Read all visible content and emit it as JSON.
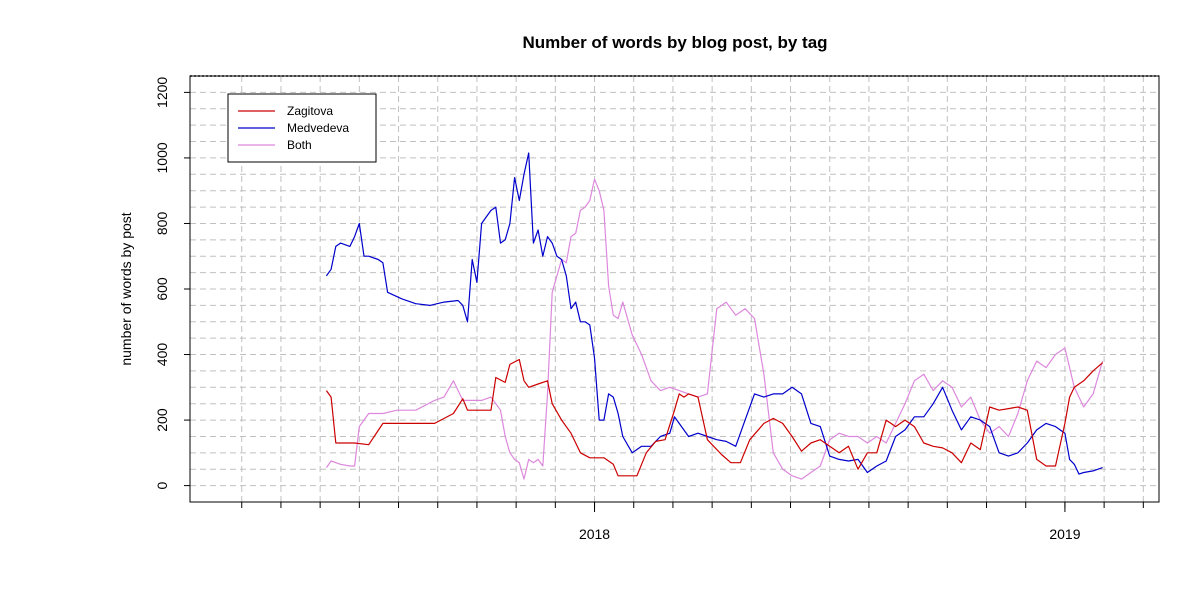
{
  "chart_data": {
    "type": "line",
    "title": "Number of words by blog post, by tag",
    "xlabel": "",
    "ylabel": "number of words by post",
    "xlim": [
      2017.14,
      2019.2
    ],
    "ylim": [
      -50,
      1250
    ],
    "x_ticks": [
      {
        "value": 2018,
        "label": "2018"
      },
      {
        "value": 2019,
        "label": "2019"
      }
    ],
    "y_ticks": [
      {
        "value": 0,
        "label": "0"
      },
      {
        "value": 200,
        "label": "200"
      },
      {
        "value": 400,
        "label": "400"
      },
      {
        "value": 600,
        "label": "600"
      },
      {
        "value": 800,
        "label": "800"
      },
      {
        "value": 1000,
        "label": "1000"
      },
      {
        "value": 1200,
        "label": "1200"
      }
    ],
    "grid": true,
    "legend": "top-left",
    "series": [
      {
        "name": "Zagitova",
        "color": "#cc0000",
        "x": [
          2017.43,
          2017.44,
          2017.45,
          2017.46,
          2017.49,
          2017.52,
          2017.55,
          2017.58,
          2017.62,
          2017.66,
          2017.7,
          2017.72,
          2017.73,
          2017.74,
          2017.76,
          2017.78,
          2017.79,
          2017.81,
          2017.82,
          2017.84,
          2017.85,
          2017.86,
          2017.88,
          2017.9,
          2017.91,
          2017.93,
          2017.95,
          2017.97,
          2017.99,
          2018.0,
          2018.02,
          2018.04,
          2018.05,
          2018.07,
          2018.09,
          2018.11,
          2018.13,
          2018.15,
          2018.17,
          2018.18,
          2018.19,
          2018.2,
          2018.22,
          2018.24,
          2018.27,
          2018.29,
          2018.31,
          2018.33,
          2018.36,
          2018.38,
          2018.4,
          2018.42,
          2018.44,
          2018.46,
          2018.48,
          2018.5,
          2018.52,
          2018.54,
          2018.56,
          2018.58,
          2018.6,
          2018.62,
          2018.64,
          2018.66,
          2018.68,
          2018.7,
          2018.72,
          2018.74,
          2018.76,
          2018.78,
          2018.8,
          2018.82,
          2018.84,
          2018.86,
          2018.88,
          2018.9,
          2018.92,
          2018.94,
          2018.96,
          2018.98,
          2019.0,
          2019.01,
          2019.02,
          2019.04,
          2019.06,
          2019.08
        ],
        "y": [
          290,
          270,
          130,
          130,
          130,
          125,
          190,
          190,
          190,
          190,
          220,
          265,
          230,
          230,
          230,
          230,
          330,
          315,
          370,
          385,
          320,
          300,
          310,
          320,
          250,
          200,
          160,
          100,
          85,
          85,
          85,
          65,
          30,
          30,
          30,
          100,
          135,
          140,
          230,
          280,
          270,
          280,
          270,
          140,
          95,
          70,
          70,
          140,
          190,
          205,
          190,
          150,
          105,
          130,
          140,
          120,
          100,
          120,
          50,
          100,
          100,
          200,
          180,
          200,
          180,
          130,
          120,
          115,
          100,
          70,
          130,
          110,
          240,
          230,
          235,
          240,
          230,
          80,
          60,
          60,
          190,
          270,
          300,
          320,
          350,
          375
        ]
      },
      {
        "name": "Medvedeva",
        "color": "#0000cc",
        "x": [
          2017.43,
          2017.44,
          2017.45,
          2017.46,
          2017.48,
          2017.49,
          2017.5,
          2017.51,
          2017.52,
          2017.54,
          2017.55,
          2017.56,
          2017.59,
          2017.62,
          2017.65,
          2017.68,
          2017.71,
          2017.72,
          2017.73,
          2017.74,
          2017.75,
          2017.76,
          2017.77,
          2017.78,
          2017.79,
          2017.8,
          2017.81,
          2017.82,
          2017.83,
          2017.84,
          2017.85,
          2017.86,
          2017.87,
          2017.88,
          2017.89,
          2017.9,
          2017.91,
          2017.92,
          2017.93,
          2017.94,
          2017.95,
          2017.96,
          2017.97,
          2017.98,
          2017.99,
          2018.0,
          2018.01,
          2018.02,
          2018.03,
          2018.04,
          2018.05,
          2018.06,
          2018.08,
          2018.1,
          2018.12,
          2018.14,
          2018.16,
          2018.17,
          2018.18,
          2018.2,
          2018.22,
          2018.24,
          2018.26,
          2018.28,
          2018.3,
          2018.32,
          2018.34,
          2018.36,
          2018.38,
          2018.4,
          2018.42,
          2018.44,
          2018.46,
          2018.48,
          2018.5,
          2018.52,
          2018.54,
          2018.56,
          2018.58,
          2018.6,
          2018.62,
          2018.64,
          2018.66,
          2018.68,
          2018.7,
          2018.72,
          2018.74,
          2018.76,
          2018.78,
          2018.8,
          2018.82,
          2018.84,
          2018.86,
          2018.88,
          2018.9,
          2018.92,
          2018.94,
          2018.96,
          2018.98,
          2019.0,
          2019.01,
          2019.02,
          2019.03,
          2019.04,
          2019.06,
          2019.08
        ],
        "y": [
          640,
          660,
          730,
          740,
          730,
          760,
          800,
          700,
          700,
          690,
          680,
          590,
          570,
          555,
          550,
          560,
          565,
          550,
          500,
          690,
          620,
          800,
          820,
          840,
          850,
          740,
          750,
          800,
          940,
          870,
          950,
          1015,
          740,
          780,
          700,
          760,
          740,
          700,
          690,
          640,
          540,
          560,
          500,
          500,
          490,
          390,
          200,
          200,
          280,
          270,
          220,
          150,
          100,
          120,
          120,
          150,
          160,
          210,
          190,
          150,
          160,
          150,
          140,
          135,
          120,
          200,
          280,
          270,
          280,
          280,
          300,
          280,
          190,
          180,
          90,
          80,
          75,
          80,
          40,
          60,
          75,
          150,
          170,
          210,
          210,
          250,
          300,
          230,
          170,
          210,
          200,
          180,
          100,
          90,
          100,
          130,
          170,
          190,
          180,
          160,
          80,
          65,
          35,
          40,
          45,
          55
        ]
      },
      {
        "name": "Both",
        "color": "#dd88dd",
        "x": [
          2017.43,
          2017.44,
          2017.46,
          2017.48,
          2017.49,
          2017.5,
          2017.52,
          2017.55,
          2017.58,
          2017.62,
          2017.66,
          2017.68,
          2017.7,
          2017.72,
          2017.73,
          2017.74,
          2017.76,
          2017.78,
          2017.79,
          2017.8,
          2017.81,
          2017.82,
          2017.83,
          2017.84,
          2017.85,
          2017.86,
          2017.87,
          2017.88,
          2017.89,
          2017.9,
          2017.91,
          2017.92,
          2017.93,
          2017.94,
          2017.95,
          2017.96,
          2017.97,
          2017.98,
          2017.99,
          2018.0,
          2018.01,
          2018.02,
          2018.03,
          2018.04,
          2018.05,
          2018.06,
          2018.08,
          2018.1,
          2018.12,
          2018.14,
          2018.16,
          2018.18,
          2018.2,
          2018.22,
          2018.24,
          2018.26,
          2018.28,
          2018.3,
          2018.32,
          2018.34,
          2018.36,
          2018.38,
          2018.4,
          2018.42,
          2018.44,
          2018.46,
          2018.48,
          2018.5,
          2018.52,
          2018.54,
          2018.56,
          2018.58,
          2018.6,
          2018.62,
          2018.64,
          2018.66,
          2018.68,
          2018.7,
          2018.72,
          2018.74,
          2018.76,
          2018.78,
          2018.8,
          2018.82,
          2018.84,
          2018.86,
          2018.88,
          2018.9,
          2018.92,
          2018.94,
          2018.96,
          2018.98,
          2019.0,
          2019.02,
          2019.04,
          2019.06,
          2019.08
        ],
        "y": [
          55,
          75,
          65,
          60,
          60,
          180,
          220,
          220,
          230,
          230,
          260,
          270,
          320,
          260,
          260,
          260,
          260,
          270,
          250,
          230,
          150,
          100,
          80,
          70,
          20,
          80,
          70,
          80,
          60,
          280,
          590,
          640,
          690,
          680,
          760,
          770,
          840,
          850,
          870,
          935,
          900,
          840,
          610,
          520,
          510,
          560,
          460,
          400,
          320,
          290,
          300,
          290,
          280,
          270,
          280,
          540,
          560,
          520,
          540,
          510,
          340,
          100,
          50,
          30,
          20,
          40,
          60,
          140,
          160,
          150,
          150,
          130,
          150,
          130,
          190,
          250,
          320,
          340,
          290,
          320,
          300,
          240,
          270,
          200,
          160,
          180,
          150,
          220,
          320,
          380,
          360,
          400,
          420,
          300,
          240,
          280,
          380
        ]
      }
    ]
  }
}
